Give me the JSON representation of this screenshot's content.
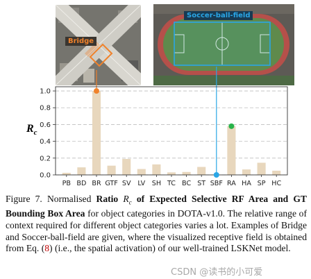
{
  "images": {
    "left": {
      "label": "Bridge"
    },
    "right": {
      "label": "Soccer-ball-field"
    }
  },
  "colors": {
    "bar": "#e8d7bd",
    "grid": "#bdbdbd",
    "bridge": "#f0822b",
    "soccer": "#2aa6e6",
    "highlight_green": "#28b34a",
    "highlight_orange": "#f0822b"
  },
  "chart_data": {
    "type": "bar",
    "categories": [
      "PB",
      "BD",
      "BR",
      "GTF",
      "SV",
      "LV",
      "SH",
      "TC",
      "BC",
      "ST",
      "SBF",
      "RA",
      "HA",
      "SP",
      "HC"
    ],
    "values": [
      0.025,
      0.09,
      1.0,
      0.11,
      0.19,
      0.07,
      0.125,
      0.03,
      0.035,
      0.095,
      0.0,
      0.58,
      0.065,
      0.145,
      0.05
    ],
    "ylabel": "R",
    "ylabel_sub": "c",
    "ylim": [
      0,
      1.05
    ],
    "yticks": [
      "0.0",
      "0.2",
      "0.4",
      "0.6",
      "0.8",
      "1.0"
    ],
    "grid": "horizontal dashed",
    "markers": [
      {
        "category": "BR",
        "value": 1.0,
        "color": "orange"
      },
      {
        "category": "SBF",
        "value": 0.0,
        "color": "blue"
      },
      {
        "category": "RA",
        "value": 0.58,
        "color": "green"
      }
    ]
  },
  "caption": {
    "prefix": "Figure 7. Normalised ",
    "bold1": "Ratio ",
    "math": "R",
    "math_sub": "c",
    "bold2": " of Expected Selective RF Area and GT Bounding Box Area",
    "rest": " for object categories in DOTA-v1.0. The relative range of context required for different object categories varies a lot. Examples of Bridge and Soccer-ball-field are given, where the visualized receptive field is obtained from Eq. (",
    "ref": "8",
    "tail": ") (i.e., the spatial activation) of our well-trained LSKNet model."
  },
  "watermark": "CSDN @读书的小可爱"
}
